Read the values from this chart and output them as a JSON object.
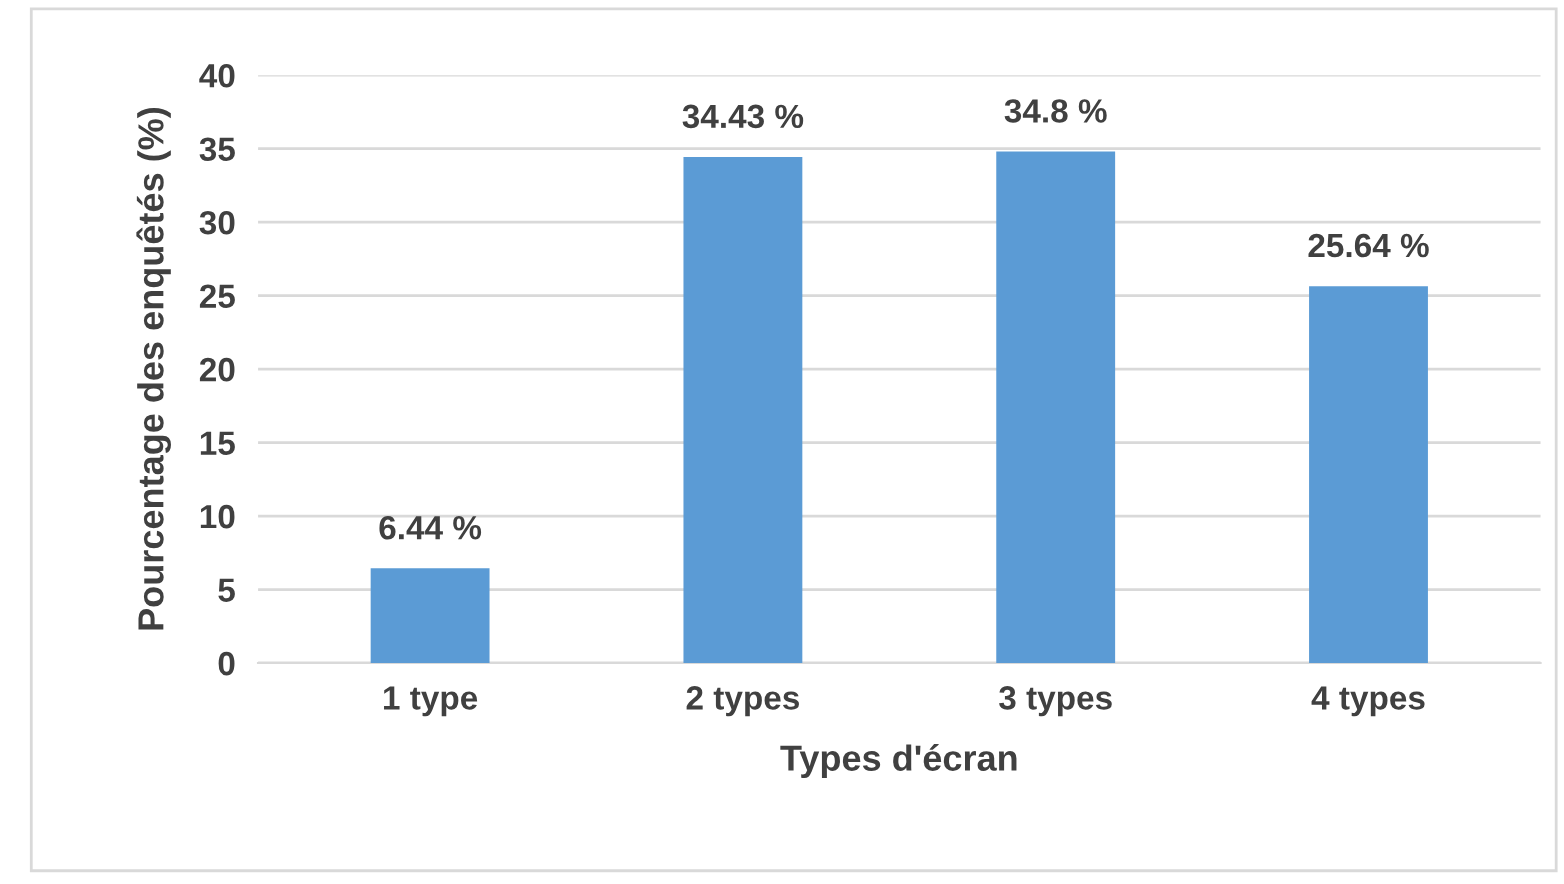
{
  "chart_data": {
    "type": "bar",
    "xlabel": "Types d'écran",
    "ylabel": "Pourcentage des enquêtés (%)",
    "categories": [
      "1 type",
      "2 types",
      "3 types",
      "4 types"
    ],
    "values": [
      6.44,
      34.43,
      34.8,
      25.64
    ],
    "value_labels": [
      "6.44 %",
      "34.43 %",
      "34.8 %",
      "25.64 %"
    ],
    "color": "#5b9bd5",
    "ylim": [
      0,
      40
    ],
    "yticks": [
      0,
      5,
      10,
      15,
      20,
      25,
      30,
      35,
      40
    ],
    "grid": "y",
    "legend": false
  }
}
